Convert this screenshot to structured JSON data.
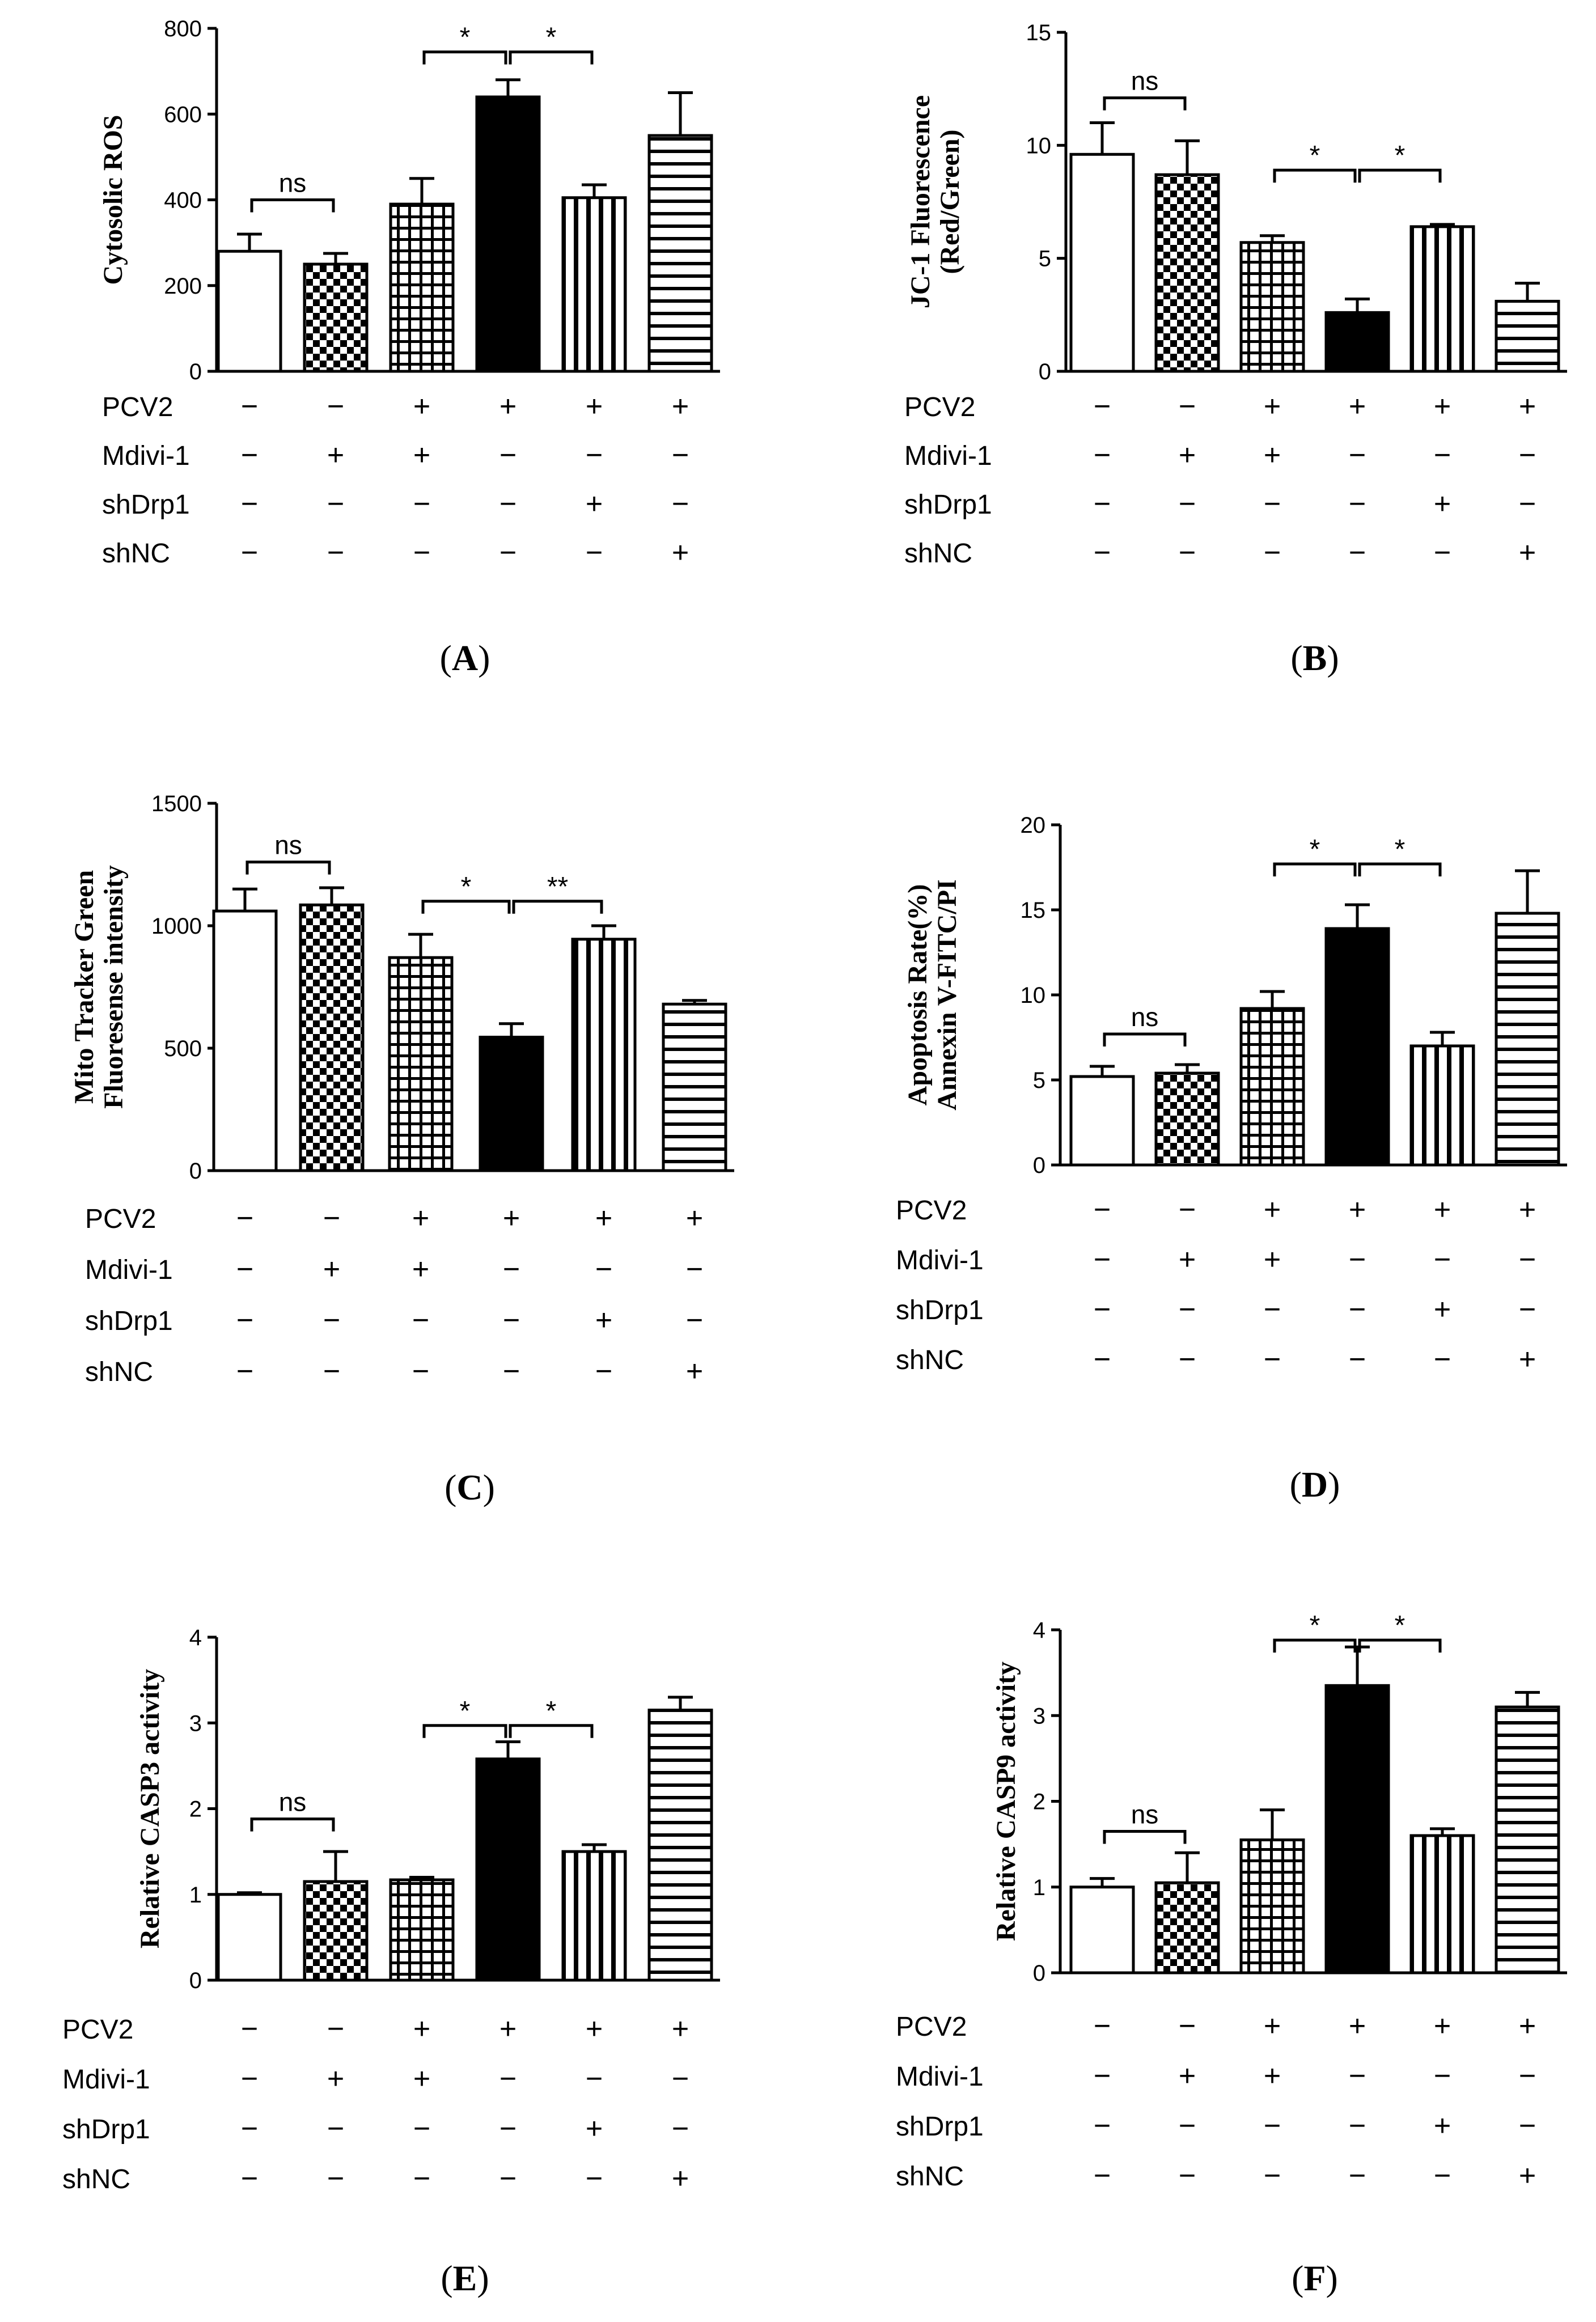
{
  "figure": {
    "treatment_rows": [
      "PCV2",
      "Mdivi-1",
      "shDrp1",
      "shNC"
    ],
    "treatment_matrix": [
      [
        "−",
        "−",
        "+",
        "+",
        "+",
        "+"
      ],
      [
        "−",
        "+",
        "+",
        "−",
        "−",
        "−"
      ],
      [
        "−",
        "−",
        "−",
        "−",
        "+",
        "−"
      ],
      [
        "−",
        "−",
        "−",
        "−",
        "−",
        "+"
      ]
    ],
    "fills": [
      "open",
      "checker",
      "grid",
      "solid",
      "vertical",
      "horizontal"
    ],
    "colors": {
      "ink": "#000000",
      "background": "#ffffff"
    }
  },
  "chart_data": [
    {
      "id": "A",
      "type": "bar",
      "panel_label": "(A)",
      "panel_letter": "A",
      "ylabel_lines": [
        "Cytosolic ROS"
      ],
      "ylim": [
        0,
        800
      ],
      "yticks": [
        0,
        200,
        400,
        600,
        800
      ],
      "tick_labels": [
        "0",
        "200",
        "400",
        "600",
        "800"
      ],
      "values": [
        280,
        250,
        390,
        640,
        405,
        550
      ],
      "errors": [
        40,
        25,
        60,
        40,
        30,
        100
      ],
      "significance": [
        {
          "from": 0,
          "to": 1,
          "label": "ns",
          "y": 400
        },
        {
          "from": 2,
          "to": 3,
          "label": "*",
          "y": 745
        },
        {
          "from": 3,
          "to": 4,
          "label": "*",
          "y": 745
        }
      ]
    },
    {
      "id": "B",
      "type": "bar",
      "panel_label": "(B)",
      "panel_letter": "B",
      "ylabel_lines": [
        "JC-1 Fluorescence",
        "(Red/Green)"
      ],
      "ylim": [
        0,
        15
      ],
      "yticks": [
        0,
        5,
        10,
        15
      ],
      "tick_labels": [
        "0",
        "5",
        "10",
        "15"
      ],
      "values": [
        9.6,
        8.7,
        5.7,
        2.6,
        6.4,
        3.1
      ],
      "errors": [
        1.4,
        1.5,
        0.3,
        0.6,
        0.1,
        0.8
      ],
      "significance": [
        {
          "from": 0,
          "to": 1,
          "label": "ns",
          "y": 12.1
        },
        {
          "from": 2,
          "to": 3,
          "label": "*",
          "y": 8.9
        },
        {
          "from": 3,
          "to": 4,
          "label": "*",
          "y": 8.9
        }
      ]
    },
    {
      "id": "C",
      "type": "bar",
      "panel_label": "(C)",
      "panel_letter": "C",
      "ylabel_lines": [
        "Mito Tracker Green",
        "Fluoresense intensity"
      ],
      "ylim": [
        0,
        1500
      ],
      "yticks": [
        0,
        500,
        1000,
        1500
      ],
      "tick_labels": [
        "0",
        "500",
        "1000",
        "1500"
      ],
      "values": [
        1060,
        1085,
        870,
        545,
        945,
        680
      ],
      "errors": [
        90,
        70,
        95,
        55,
        55,
        15
      ],
      "significance": [
        {
          "from": 0,
          "to": 1,
          "label": "ns",
          "y": 1260
        },
        {
          "from": 2,
          "to": 3,
          "label": "*",
          "y": 1100
        },
        {
          "from": 3,
          "to": 4,
          "label": "**",
          "y": 1100
        }
      ]
    },
    {
      "id": "D",
      "type": "bar",
      "panel_label": "(D)",
      "panel_letter": "D",
      "ylabel_lines": [
        "Apoptosis Rate(%)",
        "Annexin V-FITC/PI"
      ],
      "ylim": [
        0,
        20
      ],
      "yticks": [
        0,
        5,
        10,
        15,
        20
      ],
      "tick_labels": [
        "0",
        "5",
        "10",
        "15",
        "20"
      ],
      "values": [
        5.2,
        5.4,
        9.2,
        13.9,
        7.0,
        14.8
      ],
      "errors": [
        0.6,
        0.5,
        1.0,
        1.4,
        0.8,
        2.5
      ],
      "significance": [
        {
          "from": 0,
          "to": 1,
          "label": "ns",
          "y": 7.7
        },
        {
          "from": 2,
          "to": 3,
          "label": "*",
          "y": 17.7
        },
        {
          "from": 3,
          "to": 4,
          "label": "*",
          "y": 17.7
        }
      ]
    },
    {
      "id": "E",
      "type": "bar",
      "panel_label": "(E)",
      "panel_letter": "E",
      "ylabel_lines": [
        "Relative CASP3 activity"
      ],
      "ylim": [
        0,
        4
      ],
      "yticks": [
        0,
        1,
        2,
        3,
        4
      ],
      "tick_labels": [
        "0",
        "1",
        "2",
        "3",
        "4"
      ],
      "values": [
        1.0,
        1.15,
        1.17,
        2.58,
        1.5,
        3.15
      ],
      "errors": [
        0.02,
        0.35,
        0.03,
        0.2,
        0.08,
        0.15
      ],
      "significance": [
        {
          "from": 0,
          "to": 1,
          "label": "ns",
          "y": 1.88
        },
        {
          "from": 2,
          "to": 3,
          "label": "*",
          "y": 2.97
        },
        {
          "from": 3,
          "to": 4,
          "label": "*",
          "y": 2.97
        }
      ]
    },
    {
      "id": "F",
      "type": "bar",
      "panel_label": "(F)",
      "panel_letter": "F",
      "ylabel_lines": [
        "Relative CASP9 activity"
      ],
      "ylim": [
        0,
        4
      ],
      "yticks": [
        0,
        1,
        2,
        3,
        4
      ],
      "tick_labels": [
        "0",
        "1",
        "2",
        "3",
        "4"
      ],
      "values": [
        1.0,
        1.05,
        1.55,
        3.35,
        1.6,
        3.1
      ],
      "errors": [
        0.1,
        0.35,
        0.35,
        0.45,
        0.08,
        0.17
      ],
      "significance": [
        {
          "from": 0,
          "to": 1,
          "label": "ns",
          "y": 1.65
        },
        {
          "from": 2,
          "to": 3,
          "label": "*",
          "y": 3.88
        },
        {
          "from": 3,
          "to": 4,
          "label": "*",
          "y": 3.88
        }
      ]
    }
  ]
}
